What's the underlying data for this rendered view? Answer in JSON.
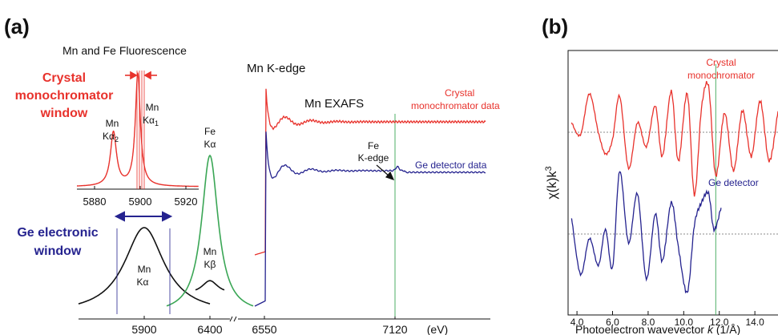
{
  "colors": {
    "red": "#e8322c",
    "blue": "#25238f",
    "green": "#3aa655",
    "black": "#111111",
    "gray": "#666666"
  },
  "panel_a": {
    "label": "(a)",
    "fluorescence_title": "Mn and Fe Fluorescence",
    "crystal_window_lines": [
      "Crystal",
      "monochromator",
      "window"
    ],
    "ge_window_lines": [
      "Ge electronic",
      "window"
    ],
    "mn_ka2": [
      "Mn",
      "Kα",
      "2"
    ],
    "mn_ka1": [
      "Mn",
      "Kα",
      "1"
    ],
    "fe_ka": [
      "Fe",
      "Kα"
    ],
    "mn_ka": [
      "Mn",
      "Kα"
    ],
    "mn_kb": [
      "Mn",
      "Kβ"
    ],
    "inset_ticks": [
      "5880",
      "5900",
      "5920"
    ],
    "mn_k_edge": "Mn K-edge",
    "mn_exafs": "Mn EXAFS",
    "crystal_data_lines": [
      "Crystal",
      "monochromator data"
    ],
    "ge_data": "Ge detector data",
    "fe_k_edge_lines": [
      "Fe",
      "K-edge"
    ],
    "axis_ticks": [
      "5900",
      "6400",
      "6550",
      "7120"
    ],
    "axis_unit": "(eV)"
  },
  "panel_b": {
    "label": "(b)",
    "ylabel": "χ(k)k",
    "ylabel_sup": "3",
    "xlabel_prefix": "Photoelectron wavevector ",
    "xlabel_k": "k",
    "xlabel_unit": " (1/Å)",
    "crystal_lines": [
      "Crystal",
      "monochromator"
    ],
    "ge_label": "Ge detector",
    "x_ticks": [
      "4.0",
      "6.0",
      "8.0",
      "10.0",
      "12.0",
      "14.0"
    ]
  },
  "chart_data": [
    {
      "type": "line",
      "name": "fluorescence-inset",
      "xlim": [
        5870,
        5930
      ],
      "x_ticks": [
        5880,
        5900,
        5920
      ],
      "series": [
        {
          "peaks": [
            {
              "center": 5888,
              "height": 0.48,
              "width": 1.8
            },
            {
              "center": 5900,
              "height": 1.0,
              "width": 1.5
            }
          ]
        }
      ]
    },
    {
      "type": "line",
      "name": "fluorescence-main",
      "series": [
        {
          "center": 5900,
          "height": 1.0,
          "width": 55
        },
        {
          "center": 6400,
          "height": 1.0,
          "width": 30
        },
        {
          "center": 6490,
          "height": 0.35,
          "width": 20
        }
      ]
    },
    {
      "type": "line",
      "name": "mn-k-edge-exafs",
      "x_ticks": [
        6550,
        7120
      ],
      "edge_energy": 6550,
      "fe_edge_energy": 7120,
      "series": [
        {
          "name": "Crystal monochromator data",
          "pre_edge": 0.0,
          "post_edge": 1.0
        },
        {
          "name": "Ge detector data",
          "pre_edge": 0.0,
          "post_edge": 1.0
        }
      ]
    },
    {
      "type": "line",
      "name": "exafs-chi",
      "xlim": [
        3.5,
        15.3
      ],
      "x_ticks": [
        4.0,
        6.0,
        8.0,
        10.0,
        12.0,
        14.0
      ],
      "marker_k": 11.8,
      "series": [
        {
          "name": "Crystal monochromator",
          "k_max": 15.3,
          "k": [
            3.7,
            4.2,
            4.7,
            5.2,
            5.6,
            6.0,
            6.4,
            6.9,
            7.4,
            7.9,
            8.4,
            8.8,
            9.3,
            9.7,
            10.2,
            10.6,
            11.0,
            11.4,
            11.8,
            12.3,
            12.8,
            13.3,
            13.8,
            14.3,
            14.8,
            15.3
          ],
          "chi": [
            0.2,
            -0.05,
            0.8,
            0.0,
            -0.45,
            -0.15,
            0.75,
            -0.75,
            0.2,
            -0.3,
            0.55,
            -0.5,
            0.85,
            -0.6,
            0.8,
            -1.3,
            0.5,
            0.95,
            -0.9,
            0.4,
            -0.8,
            0.45,
            -0.5,
            0.65,
            -0.6,
            0.45
          ]
        },
        {
          "name": "Ge detector",
          "k_max": 12.1,
          "k": [
            3.7,
            4.2,
            4.7,
            5.2,
            5.6,
            6.0,
            6.4,
            6.9,
            7.4,
            7.9,
            8.4,
            8.8,
            9.3,
            9.7,
            10.2,
            10.6,
            11.0,
            11.4,
            11.7,
            12.1
          ],
          "chi": [
            0.35,
            -0.9,
            -0.1,
            -0.7,
            0.1,
            -0.75,
            1.4,
            -0.2,
            0.9,
            -1.0,
            0.45,
            -0.6,
            0.7,
            -0.3,
            -1.3,
            0.2,
            0.7,
            0.9,
            0.1,
            0.6
          ]
        }
      ]
    }
  ]
}
